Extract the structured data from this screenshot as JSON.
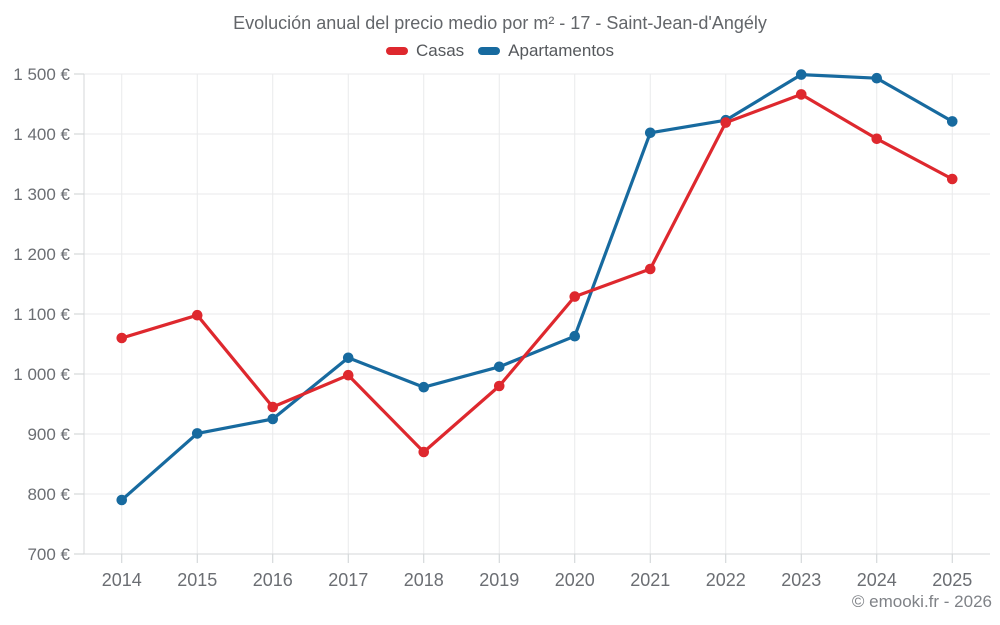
{
  "title": "Evolución anual del precio medio por m² - 17 - Saint-Jean-d'Angély",
  "legend": {
    "items": [
      {
        "label": "Casas",
        "color": "#de282e"
      },
      {
        "label": "Apartamentos",
        "color": "#176a9f"
      }
    ]
  },
  "footer": {
    "copyright": "© emooki.fr - 2026"
  },
  "colors": {
    "grid": "#e9eaeb",
    "axis": "#d5d7d9",
    "tick": "#ccd0d2",
    "text": "#6b6e73"
  },
  "chart_data": {
    "type": "line",
    "title": "Evolución anual del precio medio por m² - 17 - Saint-Jean-d'Angély",
    "x": [
      "2014",
      "2015",
      "2016",
      "2017",
      "2018",
      "2019",
      "2020",
      "2021",
      "2022",
      "2023",
      "2024",
      "2025"
    ],
    "series": [
      {
        "name": "Casas",
        "color": "#de282e",
        "values": [
          1060,
          1098,
          945,
          998,
          870,
          980,
          1129,
          1175,
          1419,
          1466,
          1392,
          1325
        ]
      },
      {
        "name": "Apartamentos",
        "color": "#176a9f",
        "values": [
          790,
          901,
          925,
          1027,
          978,
          1012,
          1063,
          1402,
          1423,
          1499,
          1493,
          1421
        ]
      }
    ],
    "ylabel": "",
    "xlabel": "",
    "ylim": [
      700,
      1500
    ],
    "ytick_step": 100,
    "ytick_labels": [
      "700 €",
      "800 €",
      "900 €",
      "1 000 €",
      "1 100 €",
      "1 200 €",
      "1 300 €",
      "1 400 €",
      "1 500 €"
    ],
    "grid": true,
    "legend_position": "top",
    "unit": "€/m²"
  }
}
